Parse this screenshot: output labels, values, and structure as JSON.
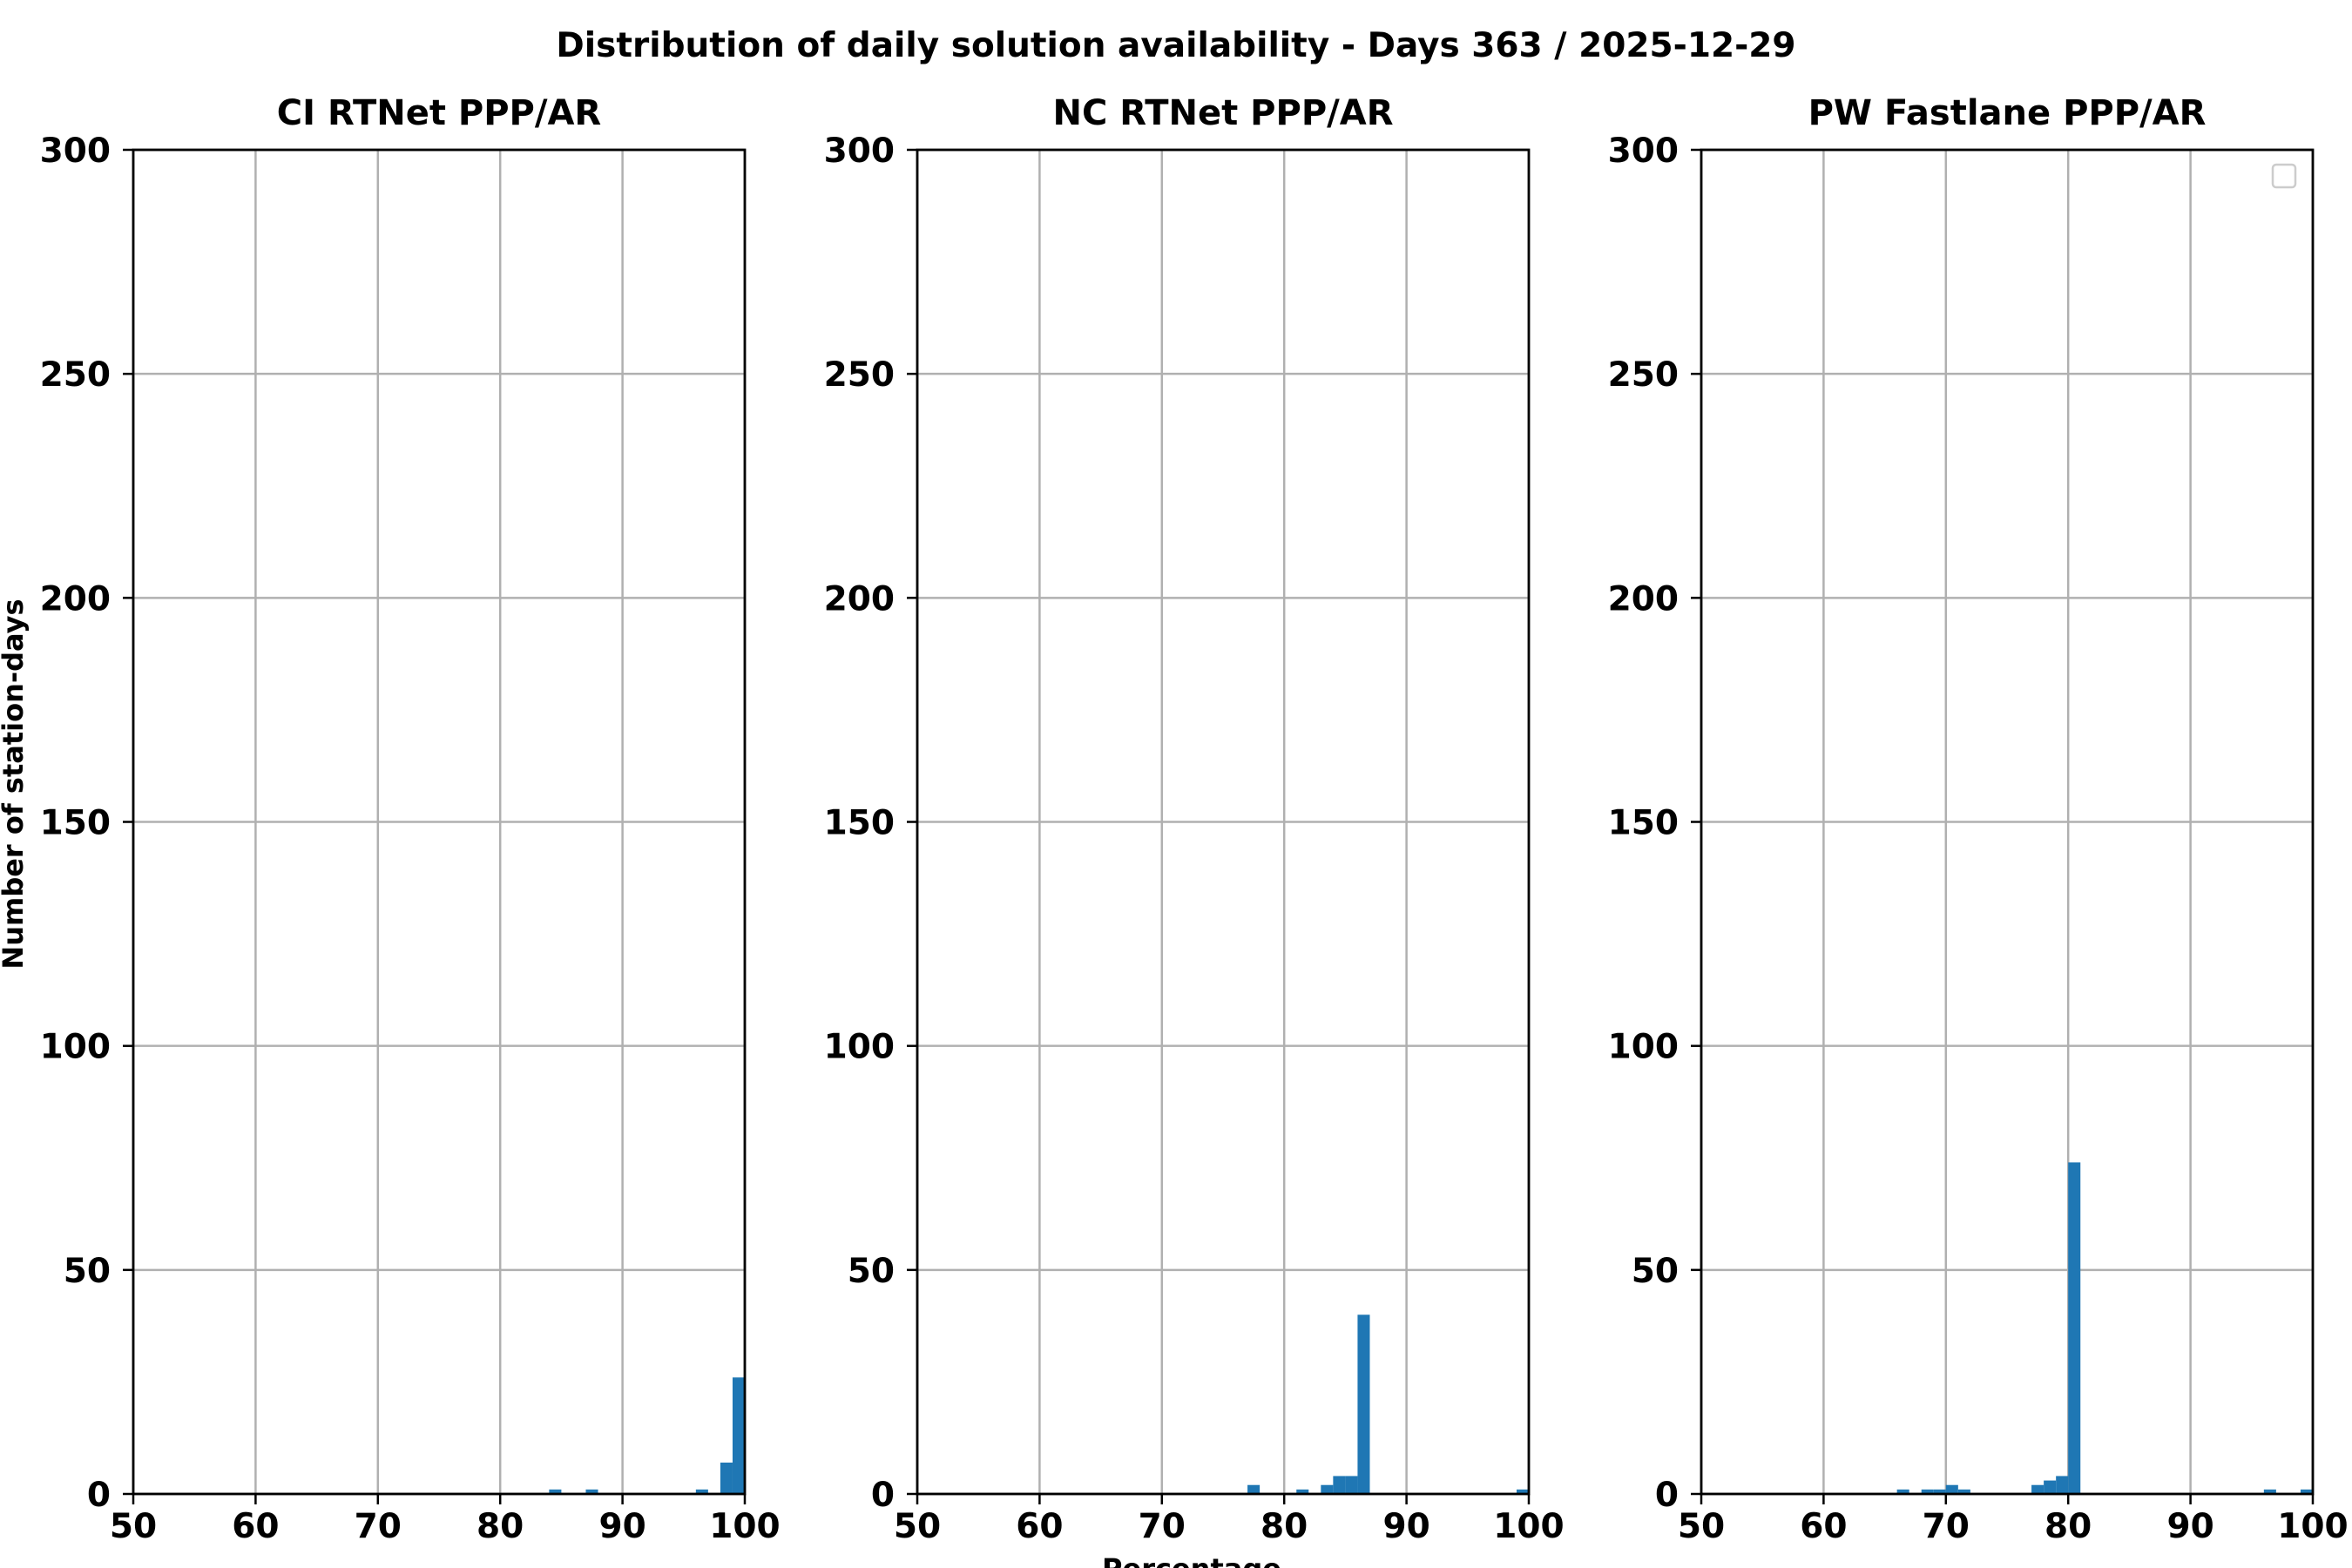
{
  "figure": {
    "suptitle": "Distribution of daily solution availability - Days 363  / 2025-12-29",
    "ylabel": "Number of station-days",
    "xlabel": "Percentage"
  },
  "colors": {
    "bar": "#1f77b4",
    "grid": "#b0b0b0",
    "axis": "#000000",
    "legend_border": "#cccccc"
  },
  "chart_data": [
    {
      "type": "bar",
      "title": "CI RTNet PPP/AR",
      "xlabel": "Percentage",
      "ylabel": "Number of station-days",
      "xlim": [
        50,
        100
      ],
      "ylim": [
        0,
        300
      ],
      "xticks": [
        50,
        60,
        70,
        80,
        90,
        100
      ],
      "yticks": [
        0,
        50,
        100,
        150,
        200,
        250,
        300
      ],
      "grid": true,
      "legend": false,
      "bin_width": 1,
      "bars": [
        {
          "x": 84,
          "value": 1
        },
        {
          "x": 87,
          "value": 1
        },
        {
          "x": 96,
          "value": 1
        },
        {
          "x": 98,
          "value": 7
        },
        {
          "x": 99,
          "value": 26
        }
      ]
    },
    {
      "type": "bar",
      "title": "NC RTNet PPP/AR",
      "xlabel": "Percentage",
      "ylabel": "Number of station-days",
      "xlim": [
        50,
        100
      ],
      "ylim": [
        0,
        300
      ],
      "xticks": [
        50,
        60,
        70,
        80,
        90,
        100
      ],
      "yticks": [
        0,
        50,
        100,
        150,
        200,
        250,
        300
      ],
      "grid": true,
      "legend": false,
      "bin_width": 1,
      "bars": [
        {
          "x": 77,
          "value": 2
        },
        {
          "x": 81,
          "value": 1
        },
        {
          "x": 83,
          "value": 2
        },
        {
          "x": 84,
          "value": 4
        },
        {
          "x": 85,
          "value": 4
        },
        {
          "x": 86,
          "value": 40
        },
        {
          "x": 99,
          "value": 1
        }
      ]
    },
    {
      "type": "bar",
      "title": "PW Fastlane PPP/AR",
      "xlabel": "Percentage",
      "ylabel": "Number of station-days",
      "xlim": [
        50,
        100
      ],
      "ylim": [
        0,
        300
      ],
      "xticks": [
        50,
        60,
        70,
        80,
        90,
        100
      ],
      "yticks": [
        0,
        50,
        100,
        150,
        200,
        250,
        300
      ],
      "grid": true,
      "legend": "top-right (empty)",
      "bin_width": 1,
      "bars": [
        {
          "x": 66,
          "value": 1
        },
        {
          "x": 68,
          "value": 1
        },
        {
          "x": 69,
          "value": 1
        },
        {
          "x": 70,
          "value": 2
        },
        {
          "x": 71,
          "value": 1
        },
        {
          "x": 77,
          "value": 2
        },
        {
          "x": 78,
          "value": 3
        },
        {
          "x": 79,
          "value": 4
        },
        {
          "x": 80,
          "value": 74
        },
        {
          "x": 96,
          "value": 1
        },
        {
          "x": 99,
          "value": 1
        }
      ]
    }
  ]
}
